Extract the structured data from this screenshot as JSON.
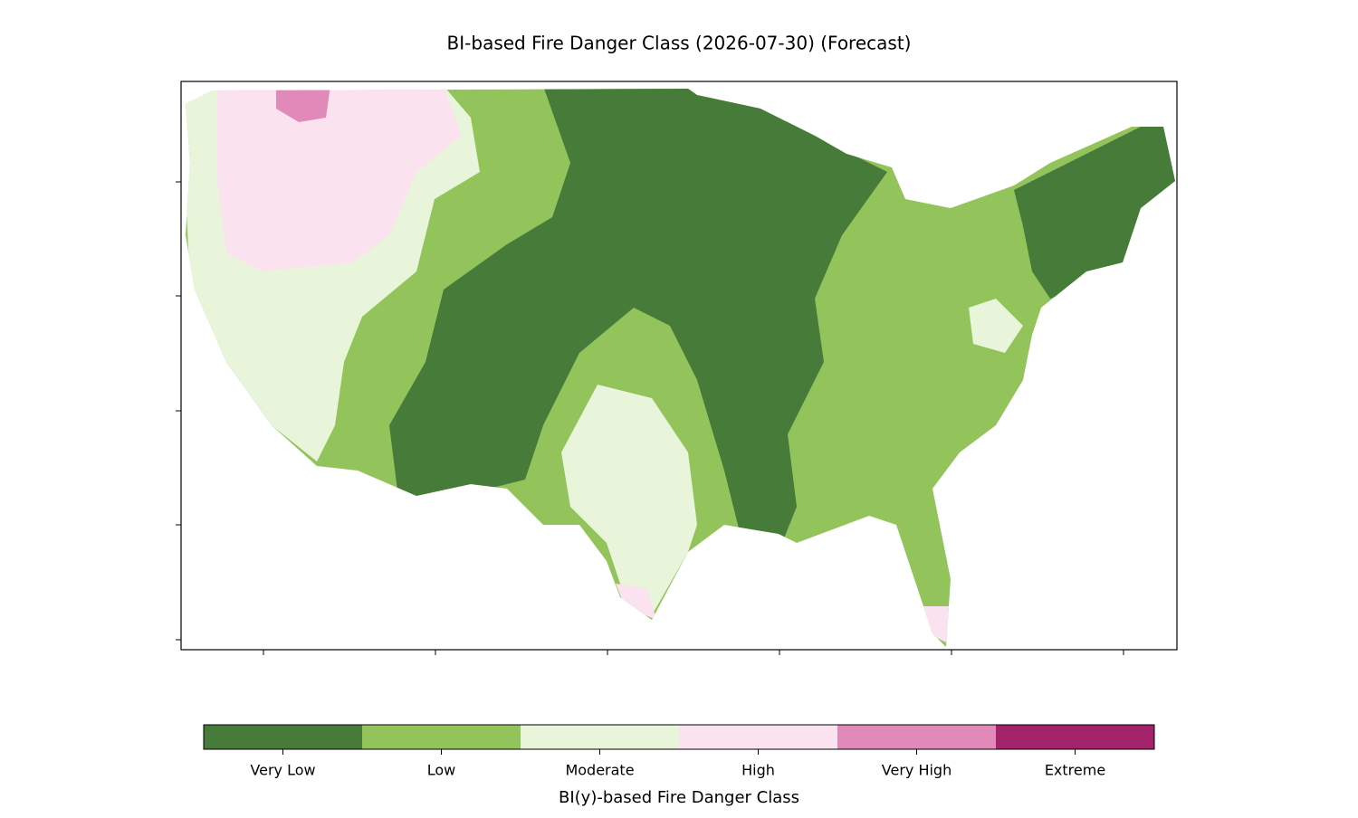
{
  "title": "BI-based Fire Danger Class (2026-07-30) (Forecast)",
  "colorbar": {
    "label": "BI(y)-based Fire Danger Class",
    "classes": [
      {
        "label": "Very Low",
        "color": "#467b3a"
      },
      {
        "label": "Low",
        "color": "#93c45b"
      },
      {
        "label": "Moderate",
        "color": "#e8f5da"
      },
      {
        "label": "High",
        "color": "#fbe2ef"
      },
      {
        "label": "Very High",
        "color": "#e18ab9"
      },
      {
        "label": "Extreme",
        "color": "#a2236a"
      }
    ]
  }
}
